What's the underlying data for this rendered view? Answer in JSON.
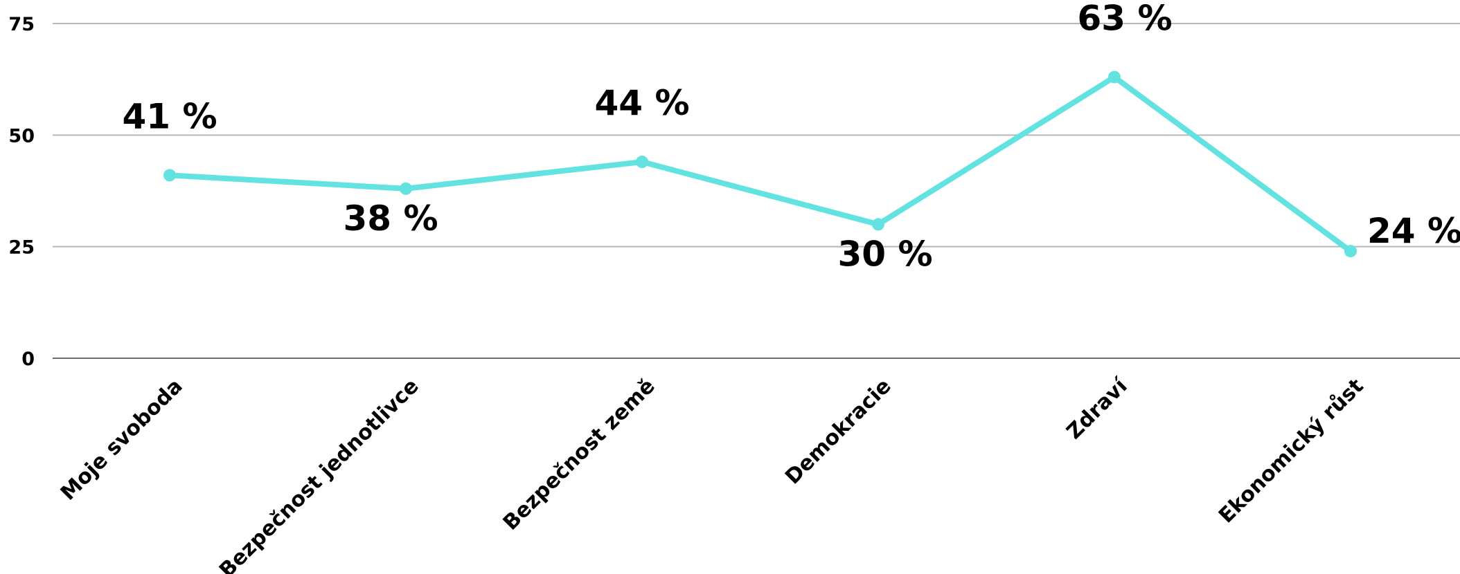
{
  "chart_data": {
    "type": "line",
    "title": "",
    "xlabel": "",
    "ylabel": "",
    "categories": [
      "Moje svoboda",
      "Bezpečnost jednotlivce",
      "Bezpečnost země",
      "Demokracie",
      "Zdraví",
      "Ekonomický růst"
    ],
    "series": [
      {
        "values": [
          41,
          38,
          44,
          30,
          63,
          24
        ],
        "labels": [
          "41 %",
          "38 %",
          "44 %",
          "30 %",
          "63 %",
          "24 %"
        ],
        "color": "#63e2e2"
      }
    ],
    "ylim": [
      0,
      75
    ],
    "yticks": [
      "0",
      "25",
      "50",
      "75"
    ],
    "grid": true,
    "legend": "none",
    "colors": {
      "gridline": "#b8b8b8",
      "baseline": "#6e6e6e",
      "text": "#000000"
    }
  }
}
